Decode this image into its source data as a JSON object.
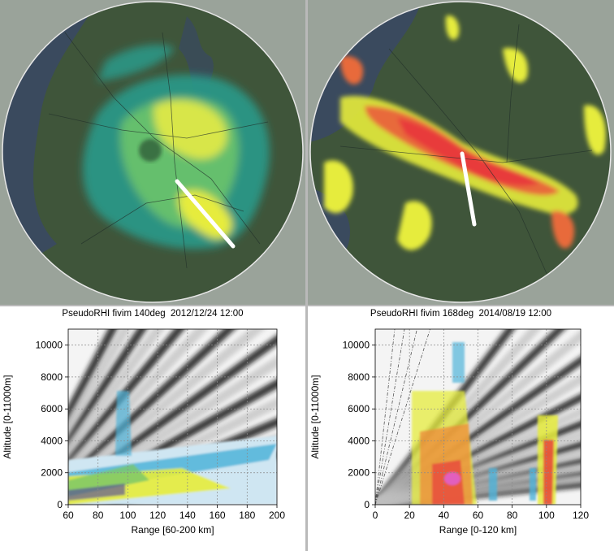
{
  "chart_data": [
    {
      "type": "heatmap",
      "panel": "left-map",
      "title": "",
      "description_visible": "radar reflectivity PPI with white RHI cross-section line"
    },
    {
      "type": "heatmap",
      "panel": "right-map",
      "title": "",
      "description_visible": "radar reflectivity PPI with white RHI cross-section line"
    },
    {
      "type": "heatmap",
      "panel": "left-rhi",
      "title": "PseudoRHI fivim 140deg  2012/12/24 12:00",
      "xlabel": "Range [60-200 km]",
      "ylabel": "Altitude [0-11000m]",
      "xlim": [
        60,
        200
      ],
      "ylim": [
        0,
        11000
      ],
      "x_ticks": [
        60,
        80,
        100,
        120,
        140,
        160,
        180,
        200
      ],
      "y_ticks": [
        0,
        2000,
        4000,
        6000,
        8000,
        10000
      ],
      "grid": true
    },
    {
      "type": "heatmap",
      "panel": "right-rhi",
      "title": "PseudoRHI fivim 168deg  2014/08/19 12:00",
      "xlabel": "Range [0-120 km]",
      "ylabel": "Altitude [0-11000m]",
      "xlim": [
        0,
        120
      ],
      "ylim": [
        0,
        11000
      ],
      "x_ticks": [
        0,
        20,
        40,
        60,
        80,
        100,
        120
      ],
      "y_ticks": [
        0,
        2000,
        4000,
        6000,
        8000,
        10000
      ],
      "grid": true
    }
  ],
  "colors": {
    "map_bg": "#9aa39a",
    "land": "#3f553a",
    "water": "#3a4a5e",
    "cross_section_line": "#ffffff",
    "echo_weak": "#2a9a8a",
    "echo_mid": "#e6ec3c",
    "echo_strong": "#e83a3a"
  }
}
